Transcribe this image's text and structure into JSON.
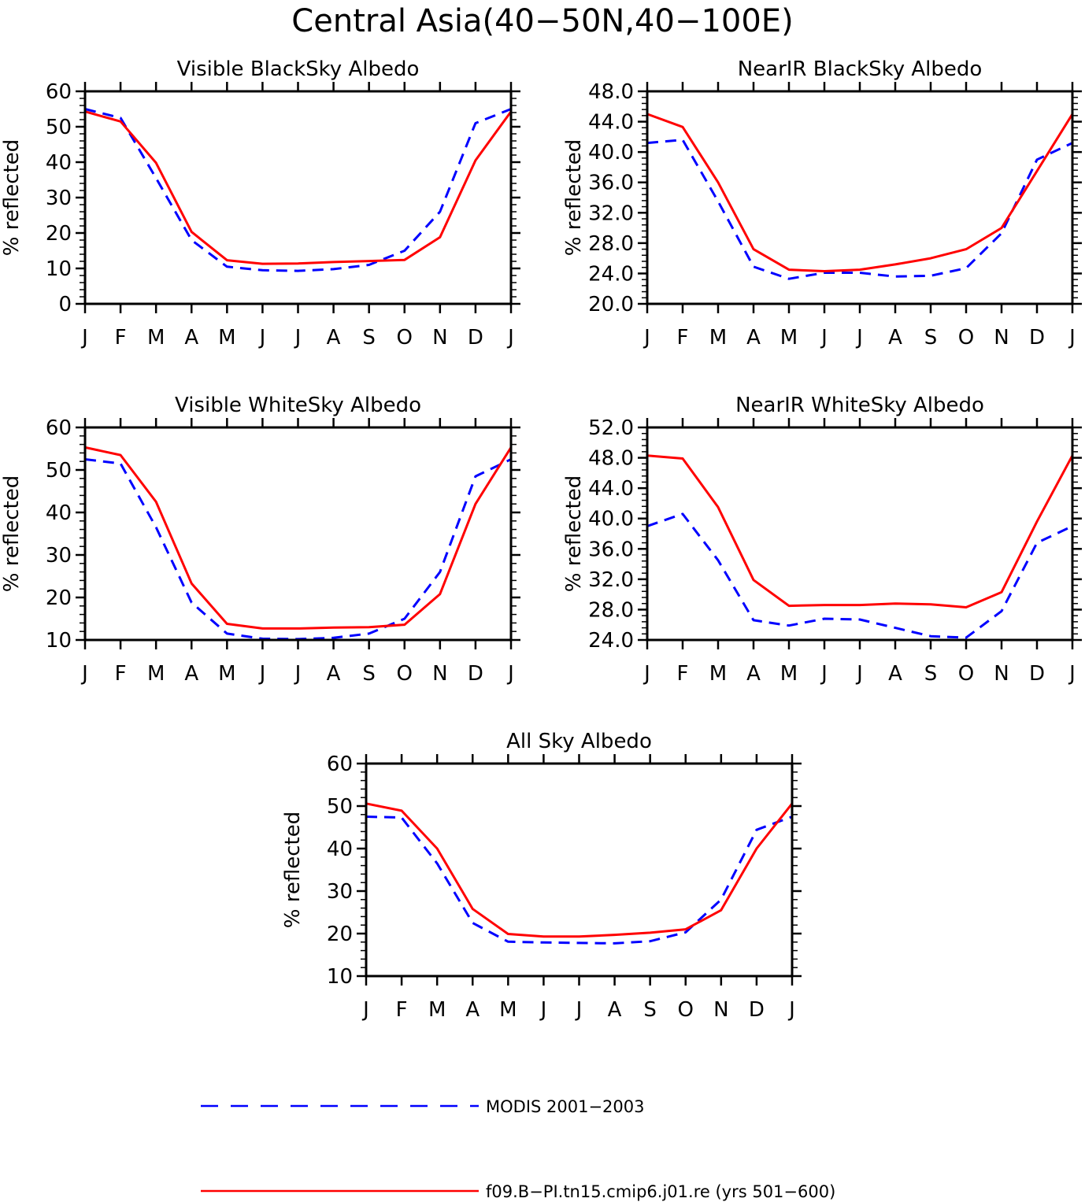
{
  "title": "Central Asia(40−50N,40−100E)",
  "colors": {
    "modis": "#0000ff",
    "model": "#ff0000",
    "axis": "#000000"
  },
  "legend": [
    {
      "label": "MODIS 2001−2003",
      "style": "dashed",
      "color": "#0000ff"
    },
    {
      "label": "f09.B−PI.tn15.cmip6.j01.re (yrs 501−600)",
      "style": "solid",
      "color": "#ff0000"
    }
  ],
  "chart_data": [
    {
      "type": "line",
      "title": "Visible BlackSky Albedo",
      "ylabel": "% reflected",
      "categories": [
        "J",
        "F",
        "M",
        "A",
        "M",
        "J",
        "J",
        "A",
        "S",
        "O",
        "N",
        "D",
        "J"
      ],
      "ylim": [
        0,
        60
      ],
      "yticks": [
        "0",
        "10",
        "20",
        "30",
        "40",
        "50",
        "60"
      ],
      "series": [
        {
          "name": "MODIS 2001−2003",
          "values": [
            55.0,
            52.5,
            35.5,
            18.0,
            10.5,
            9.5,
            9.3,
            9.8,
            11.0,
            15.0,
            26.0,
            51.0,
            55.0
          ]
        },
        {
          "name": "f09.B−PI.tn15.cmip6.j01.re (yrs 501−600)",
          "values": [
            54.3,
            51.5,
            39.8,
            20.3,
            12.3,
            11.3,
            11.4,
            11.8,
            12.1,
            12.4,
            18.8,
            40.5,
            54.3
          ]
        }
      ]
    },
    {
      "type": "line",
      "title": "NearIR BlackSky Albedo",
      "ylabel": "% reflected",
      "categories": [
        "J",
        "F",
        "M",
        "A",
        "M",
        "J",
        "J",
        "A",
        "S",
        "O",
        "N",
        "D",
        "J"
      ],
      "ylim": [
        20,
        48
      ],
      "yticks": [
        "20.0",
        "24.0",
        "28.0",
        "32.0",
        "36.0",
        "40.0",
        "44.0",
        "48.0"
      ],
      "series": [
        {
          "name": "MODIS 2001−2003",
          "values": [
            41.2,
            41.6,
            33.5,
            24.9,
            23.3,
            24.1,
            24.1,
            23.6,
            23.7,
            24.7,
            29.3,
            39.0,
            41.2
          ]
        },
        {
          "name": "f09.B−PI.tn15.cmip6.j01.re (yrs 501−600)",
          "values": [
            45.0,
            43.3,
            36.0,
            27.2,
            24.5,
            24.3,
            24.5,
            25.2,
            26.0,
            27.2,
            30.0,
            37.5,
            45.0
          ]
        }
      ]
    },
    {
      "type": "line",
      "title": "Visible WhiteSky Albedo",
      "ylabel": "% reflected",
      "categories": [
        "J",
        "F",
        "M",
        "A",
        "M",
        "J",
        "J",
        "A",
        "S",
        "O",
        "N",
        "D",
        "J"
      ],
      "ylim": [
        10,
        60
      ],
      "yticks": [
        "10",
        "20",
        "30",
        "40",
        "50",
        "60"
      ],
      "series": [
        {
          "name": "MODIS 2001−2003",
          "values": [
            52.5,
            51.5,
            36.5,
            18.8,
            11.5,
            10.3,
            10.2,
            10.5,
            11.5,
            15.0,
            26.0,
            48.5,
            52.5
          ]
        },
        {
          "name": "f09.B−PI.tn15.cmip6.j01.re (yrs 501−600)",
          "values": [
            55.3,
            53.5,
            42.5,
            23.3,
            13.8,
            12.7,
            12.7,
            12.9,
            13.0,
            13.6,
            20.8,
            42.0,
            55.3
          ]
        }
      ]
    },
    {
      "type": "line",
      "title": "NearIR WhiteSky Albedo",
      "ylabel": "% reflected",
      "categories": [
        "J",
        "F",
        "M",
        "A",
        "M",
        "J",
        "J",
        "A",
        "S",
        "O",
        "N",
        "D",
        "J"
      ],
      "ylim": [
        24,
        52
      ],
      "yticks": [
        "24.0",
        "28.0",
        "32.0",
        "36.0",
        "40.0",
        "44.0",
        "48.0",
        "52.0"
      ],
      "series": [
        {
          "name": "MODIS 2001−2003",
          "values": [
            39.0,
            40.6,
            34.5,
            26.6,
            25.9,
            26.8,
            26.7,
            25.6,
            24.5,
            24.3,
            27.8,
            36.8,
            39.0
          ]
        },
        {
          "name": "f09.B−PI.tn15.cmip6.j01.re (yrs 501−600)",
          "values": [
            48.3,
            47.9,
            41.5,
            31.9,
            28.5,
            28.6,
            28.6,
            28.8,
            28.7,
            28.3,
            30.3,
            39.6,
            48.3
          ]
        }
      ]
    },
    {
      "type": "line",
      "title": "All Sky Albedo",
      "ylabel": "% reflected",
      "categories": [
        "J",
        "F",
        "M",
        "A",
        "M",
        "J",
        "J",
        "A",
        "S",
        "O",
        "N",
        "D",
        "J"
      ],
      "ylim": [
        10,
        60
      ],
      "yticks": [
        "10",
        "20",
        "30",
        "40",
        "50",
        "60"
      ],
      "series": [
        {
          "name": "MODIS 2001−2003",
          "values": [
            47.5,
            47.3,
            36.5,
            22.5,
            18.1,
            17.9,
            17.8,
            17.7,
            18.2,
            20.3,
            28.0,
            44.4,
            47.5
          ]
        },
        {
          "name": "f09.B−PI.tn15.cmip6.j01.re (yrs 501−600)",
          "values": [
            50.6,
            48.9,
            40.0,
            25.8,
            19.9,
            19.3,
            19.3,
            19.7,
            20.2,
            21.0,
            25.5,
            40.0,
            50.6
          ]
        }
      ]
    }
  ]
}
